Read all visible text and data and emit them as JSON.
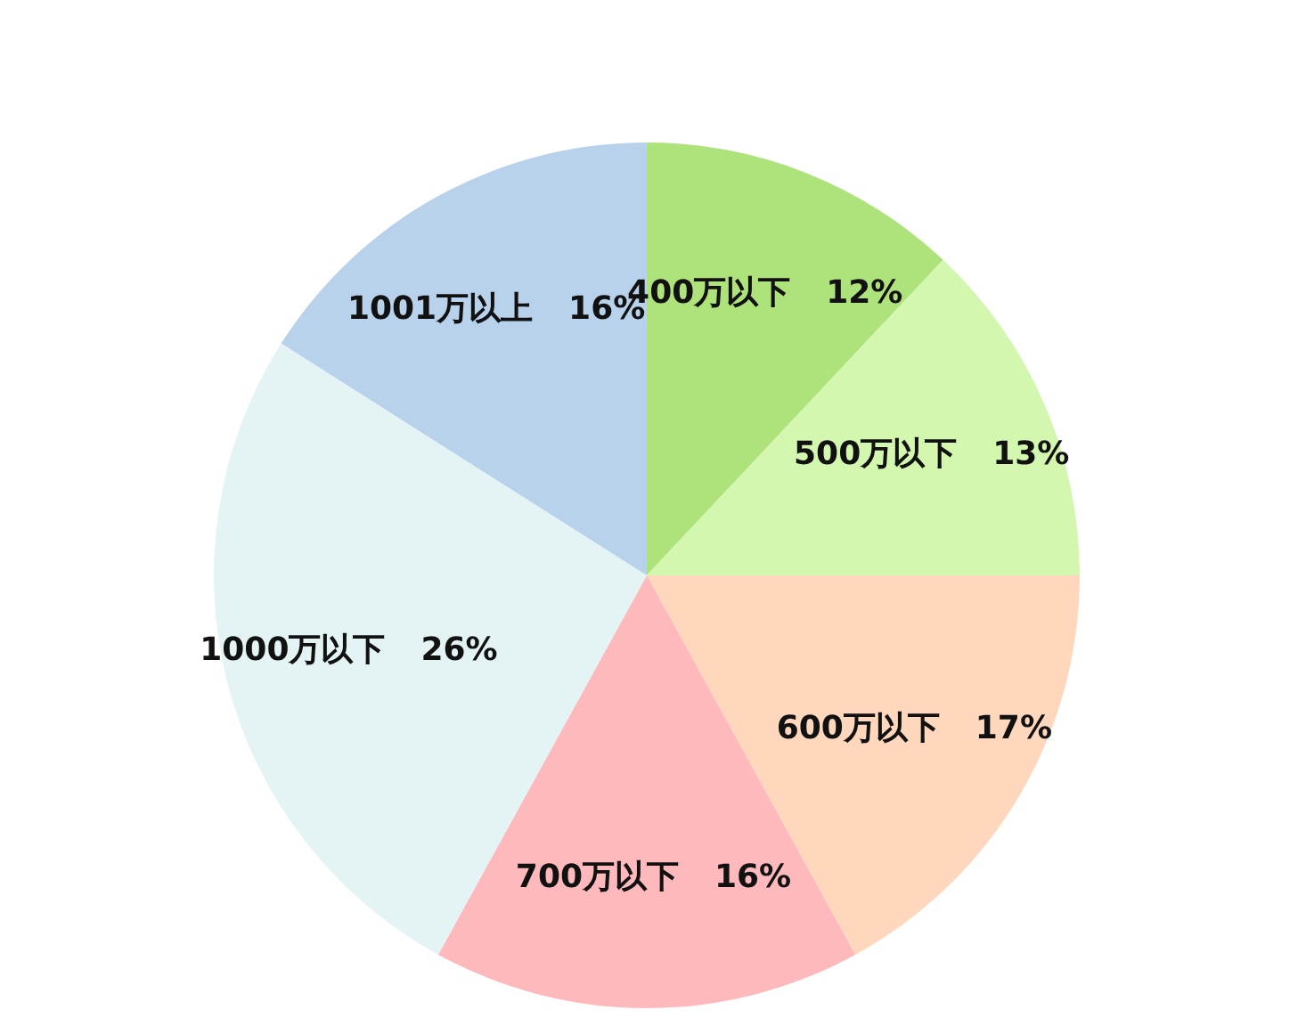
{
  "chart_data": {
    "type": "pie",
    "categories": [
      "400万以下",
      "500万以下",
      "600万以下",
      "700万以下",
      "1000万以下",
      "1001万以上"
    ],
    "values": [
      12,
      13,
      17,
      16,
      26,
      16
    ],
    "value_labels": [
      "12%",
      "13%",
      "17%",
      "16%",
      "26%",
      "16%"
    ],
    "colors": [
      "#aee27a",
      "#d4f7b0",
      "#fed7bd",
      "#feb9bc",
      "#e4f4f4",
      "#b8d2ec"
    ]
  }
}
